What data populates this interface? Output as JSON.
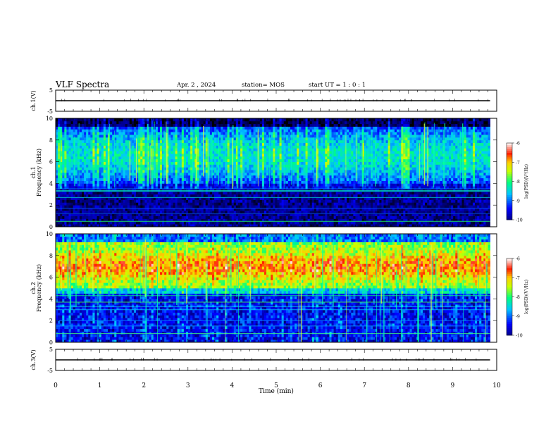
{
  "header": {
    "title": "VLF Spectra",
    "date": "Apr. 2 , 2024",
    "station": "station= MOS",
    "start": "start  UT =   1 : 0  : 1"
  },
  "chart_data": [
    {
      "type": "line",
      "name": "ch1-waveform",
      "ylabel": "ch.1(V)",
      "ylim": [
        -5,
        5
      ],
      "yticks": [
        "5",
        "-5"
      ],
      "x": [
        0,
        10
      ],
      "y": [
        0,
        0
      ]
    },
    {
      "type": "heatmap",
      "name": "ch1-spectrogram",
      "ylabel": "ch.1\nFrequency (kHz)",
      "ylabel_lines": [
        "ch.1",
        "Frequency (kHz)"
      ],
      "ylim": [
        0,
        10
      ],
      "yticks": [
        "0",
        "2",
        "4",
        "6",
        "8",
        "10"
      ],
      "xlim": [
        0,
        9.85
      ],
      "colorbar": {
        "label": "log(PSD)(V²/Hz)",
        "range": [
          -10,
          -6
        ],
        "ticks": [
          "-6",
          "-7",
          "-8",
          "-9",
          "-10"
        ]
      },
      "description": "background 4-9 kHz blue-cyan, vertical spikes up to 9.5 kHz, horizontal lines near 3.3, 2.7, 0.5 kHz"
    },
    {
      "type": "heatmap",
      "name": "ch2-spectrogram",
      "ylabel": "ch.2\nFrequency (kHz)",
      "ylabel_lines": [
        "ch.2",
        "Frequency (kHz)"
      ],
      "ylim": [
        0,
        10
      ],
      "yticks": [
        "0",
        "2",
        "4",
        "6",
        "8",
        "10"
      ],
      "xlim": [
        0,
        9.85
      ],
      "colorbar": {
        "label": "log(PSD)(V²/Hz)",
        "range": [
          -10,
          -6
        ],
        "ticks": [
          "-6",
          "-7",
          "-8",
          "-9",
          "-10"
        ]
      },
      "description": "intense band 5-9 kHz peaking near 7 kHz, horizontal lines near 4.3, 3.7, 3.3, 3.0, 2.0 kHz"
    },
    {
      "type": "line",
      "name": "ch3-waveform",
      "ylabel": "ch.3(V)",
      "ylim": [
        -5,
        5
      ],
      "yticks": [
        "5",
        "-5"
      ],
      "x": [
        0,
        10
      ],
      "y": [
        0,
        0
      ]
    }
  ],
  "xaxis": {
    "label": "Time  (min)",
    "ticks": [
      "0",
      "1",
      "2",
      "3",
      "4",
      "5",
      "6",
      "7",
      "8",
      "9",
      "10"
    ],
    "range": [
      0,
      10
    ]
  },
  "colors": {
    "bg": "#000000",
    "scale": [
      "#00008b",
      "#0000ff",
      "#00ffff",
      "#00ff00",
      "#ffff00",
      "#ff0000",
      "#ffffff"
    ]
  }
}
